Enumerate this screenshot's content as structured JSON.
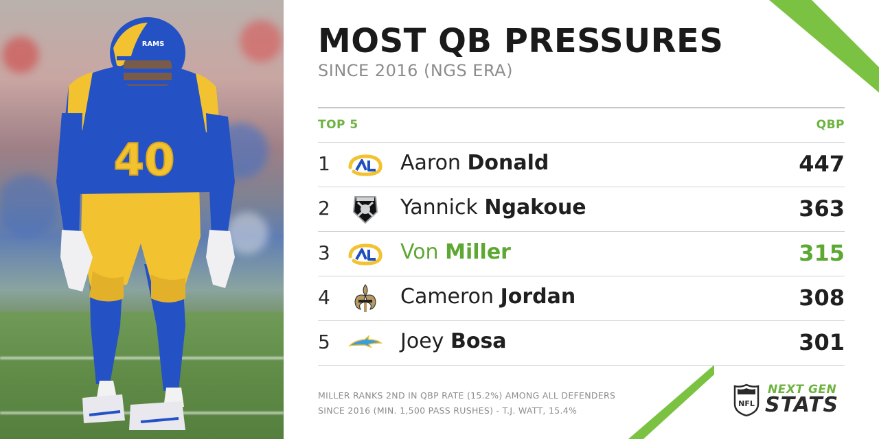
{
  "header": {
    "title": "MOST QB PRESSURES",
    "subtitle": "SINCE 2016 (NGS ERA)"
  },
  "table": {
    "left_label": "TOP 5",
    "right_label": "QBP",
    "rows": [
      {
        "rank": "1",
        "first": "Aaron",
        "last": "Donald",
        "value": "447",
        "team_icon": "rams-logo-icon",
        "highlight": false
      },
      {
        "rank": "2",
        "first": "Yannick",
        "last": "Ngakoue",
        "value": "363",
        "team_icon": "raiders-logo-icon",
        "highlight": false
      },
      {
        "rank": "3",
        "first": "Von",
        "last": "Miller",
        "value": "315",
        "team_icon": "rams-logo-icon",
        "highlight": true
      },
      {
        "rank": "4",
        "first": "Cameron",
        "last": "Jordan",
        "value": "308",
        "team_icon": "saints-logo-icon",
        "highlight": false
      },
      {
        "rank": "5",
        "first": "Joey",
        "last": "Bosa",
        "value": "301",
        "team_icon": "chargers-logo-icon",
        "highlight": false
      }
    ]
  },
  "footnote": {
    "line1": "MILLER RANKS 2ND IN QBP RATE (15.2%) AMONG ALL DEFENDERS",
    "line2": "SINCE 2016 (MIN. 1,500 PASS RUSHES) - T.J. WATT, 15.4%"
  },
  "brand": {
    "line1": "NEXT GEN",
    "line2": "STATS",
    "nfl_shield_text": "NFL"
  },
  "photo": {
    "jersey_number": "40",
    "helmet_text": "RAMS"
  },
  "colors": {
    "accent_green": "#6db33f",
    "highlight_green": "#5da832",
    "rams_blue": "#1f4fbf",
    "rams_yellow": "#f2c230"
  }
}
